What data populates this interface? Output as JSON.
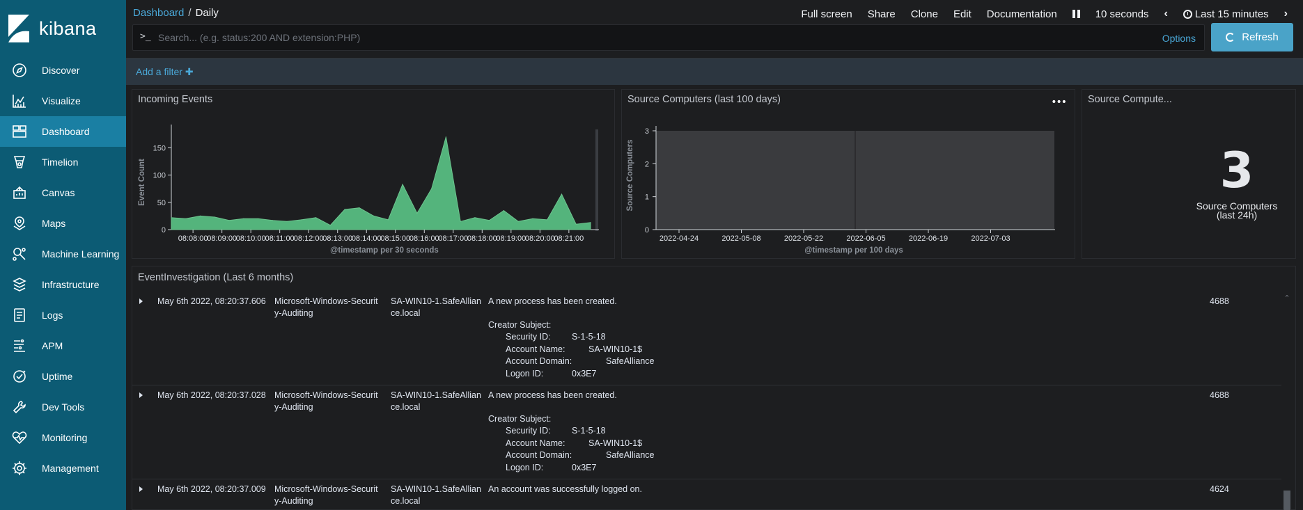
{
  "app": {
    "brand": "kibana"
  },
  "sidebar": {
    "items": [
      {
        "label": "Discover",
        "icon": "compass-icon"
      },
      {
        "label": "Visualize",
        "icon": "visualize-icon"
      },
      {
        "label": "Dashboard",
        "icon": "dashboard-icon",
        "active": true
      },
      {
        "label": "Timelion",
        "icon": "timelion-icon"
      },
      {
        "label": "Canvas",
        "icon": "canvas-icon"
      },
      {
        "label": "Maps",
        "icon": "maps-icon"
      },
      {
        "label": "Machine Learning",
        "icon": "machine-learning-icon"
      },
      {
        "label": "Infrastructure",
        "icon": "infrastructure-icon"
      },
      {
        "label": "Logs",
        "icon": "logs-icon"
      },
      {
        "label": "APM",
        "icon": "apm-icon"
      },
      {
        "label": "Uptime",
        "icon": "uptime-icon"
      },
      {
        "label": "Dev Tools",
        "icon": "wrench-icon"
      },
      {
        "label": "Monitoring",
        "icon": "monitoring-icon"
      },
      {
        "label": "Management",
        "icon": "gear-icon"
      }
    ]
  },
  "breadcrumb": {
    "parent": "Dashboard",
    "sep": "/",
    "current": "Daily"
  },
  "top_menu": {
    "full_screen": "Full screen",
    "share": "Share",
    "clone": "Clone",
    "edit": "Edit",
    "documentation": "Documentation",
    "interval": "10 seconds",
    "time_range": "Last 15 minutes"
  },
  "search": {
    "prompt": ">_",
    "placeholder": "Search... (e.g. status:200 AND extension:PHP)",
    "value": "",
    "options_label": "Options",
    "refresh_label": "Refresh"
  },
  "filter_bar": {
    "add_filter": "Add a filter ✚"
  },
  "panels": {
    "incoming": {
      "title": "Incoming Events"
    },
    "source_100": {
      "title": "Source Computers (last 100 days)",
      "menu": "•••"
    },
    "source_metric": {
      "title": "Source Compute...",
      "value": "3",
      "label": "Source Computers (last 24h)"
    },
    "events": {
      "title": "EventInvestigation (Last 6 months)"
    }
  },
  "chart_data": [
    {
      "type": "area",
      "title": "Incoming Events",
      "xlabel": "@timestamp per 30 seconds",
      "ylabel": "Event Count",
      "ylim": [
        0,
        180
      ],
      "yticks": [
        0,
        50,
        100,
        150
      ],
      "x_tick_labels": [
        "08:08:00",
        "08:09:00",
        "08:10:00",
        "08:11:00",
        "08:12:00",
        "08:13:00",
        "08:14:00",
        "08:15:00",
        "08:16:00",
        "08:17:00",
        "08:18:00",
        "08:19:00",
        "08:20:00",
        "08:21:00"
      ],
      "color": "#54b47c",
      "values": [
        22,
        20,
        25,
        23,
        17,
        20,
        20,
        17,
        15,
        18,
        22,
        8,
        37,
        40,
        25,
        18,
        83,
        30,
        75,
        170,
        15,
        22,
        17,
        35,
        15,
        20,
        18,
        65,
        10,
        13
      ]
    },
    {
      "type": "bar",
      "title": "Source Computers (last 100 days)",
      "xlabel": "@timestamp per 100 days",
      "ylabel": "Source Computers",
      "ylim": [
        0,
        3
      ],
      "yticks": [
        0,
        1,
        2,
        3
      ],
      "x_tick_labels": [
        "2022-04-24",
        "2022-05-08",
        "2022-05-22",
        "2022-06-05",
        "2022-06-19",
        "2022-07-03"
      ],
      "series": [
        {
          "values": [
            3,
            3
          ]
        }
      ]
    }
  ],
  "events": {
    "rows": [
      {
        "timestamp": "May 6th 2022, 08:20:37.606",
        "provider": [
          "Microsoft-Windows-Securit",
          "y-Auditing"
        ],
        "computer": [
          "SA-WIN10-1.SafeAllian",
          "ce.local"
        ],
        "message": "A new process has been created.",
        "subject": "Creator Subject:",
        "details": [
          {
            "k": "Security ID:",
            "v": "S-1-5-18"
          },
          {
            "k": "Account Name:",
            "v": "SA-WIN10-1$"
          },
          {
            "k": "Account Domain:",
            "v": "SafeAlliance"
          },
          {
            "k": "Logon ID:",
            "v": "0x3E7"
          }
        ],
        "event_id": "4688"
      },
      {
        "timestamp": "May 6th 2022, 08:20:37.028",
        "provider": [
          "Microsoft-Windows-Securit",
          "y-Auditing"
        ],
        "computer": [
          "SA-WIN10-1.SafeAllian",
          "ce.local"
        ],
        "message": "A new process has been created.",
        "subject": "Creator Subject:",
        "details": [
          {
            "k": "Security ID:",
            "v": "S-1-5-18"
          },
          {
            "k": "Account Name:",
            "v": "SA-WIN10-1$"
          },
          {
            "k": "Account Domain:",
            "v": "SafeAlliance"
          },
          {
            "k": "Logon ID:",
            "v": "0x3E7"
          }
        ],
        "event_id": "4688"
      },
      {
        "timestamp": "May 6th 2022, 08:20:37.009",
        "provider": [
          "Microsoft-Windows-Securit",
          "y-Auditing"
        ],
        "computer": [
          "SA-WIN10-1.SafeAllian",
          "ce.local"
        ],
        "message": "An account was successfully logged on.",
        "subject": "",
        "details": [],
        "event_id": "4624"
      }
    ]
  }
}
